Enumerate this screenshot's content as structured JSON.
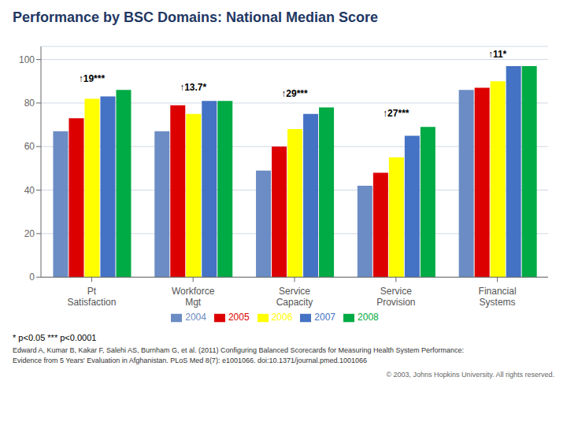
{
  "chart_data": {
    "type": "bar",
    "title": "Performance by BSC Domains: National Median Score",
    "categories": [
      "Pt\nSatisfaction",
      "Workforce\nMgt",
      "Service\nCapacity",
      "Service\nProvision",
      "Financial\nSystems"
    ],
    "series": [
      {
        "name": "2004",
        "color": "#6b8cc4",
        "values": [
          67,
          67,
          49,
          42,
          86
        ]
      },
      {
        "name": "2005",
        "color": "#dd0000",
        "values": [
          73,
          79,
          60,
          48,
          87
        ]
      },
      {
        "name": "2006",
        "color": "#ffff00",
        "values": [
          82,
          75,
          68,
          55,
          90
        ]
      },
      {
        "name": "2007",
        "color": "#4472c4",
        "values": [
          83,
          81,
          75,
          65,
          97
        ]
      },
      {
        "name": "2008",
        "color": "#00aa44",
        "values": [
          86,
          81,
          78,
          69,
          97
        ]
      }
    ],
    "annotations": [
      {
        "category": 0,
        "text": "↑19***",
        "y": 88
      },
      {
        "category": 1,
        "text": "↑13.7*",
        "y": 84
      },
      {
        "category": 2,
        "text": "↑29***",
        "y": 81
      },
      {
        "category": 3,
        "text": "↑27***",
        "y": 72
      },
      {
        "category": 4,
        "text": "↑11*",
        "y": 99
      }
    ],
    "ylim": [
      0,
      106
    ],
    "yticks": [
      0,
      20,
      40,
      60,
      80,
      100
    ],
    "grid": true,
    "legend": "bottom",
    "footnote": "* p<0.05 *** p<0.0001",
    "citation": [
      "Edward A, Kumar B, Kakar F, Salehi AS, Burnham G, et al. (2011) Configuring Balanced Scorecards for Measuring Health System Performance:",
      "Evidence from 5 Years' Evaluation in Afghanistan. PLoS Med 8(7): e1001066. doi:10.1371/journal.pmed.1001066"
    ],
    "copyright": "© 2003, Johns Hopkins University. All rights reserved."
  }
}
